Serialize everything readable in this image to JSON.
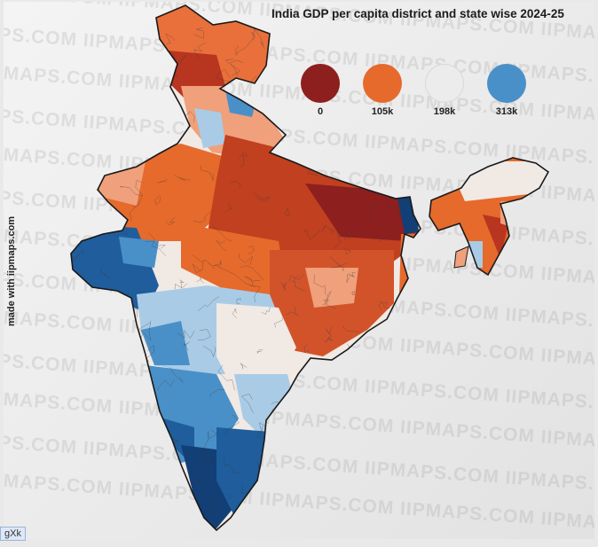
{
  "title": "India GDP per capita district and state wise 2024-25",
  "legend": [
    {
      "label": "0",
      "color": "#8e1f1f"
    },
    {
      "label": "105k",
      "color": "#e66a2c"
    },
    {
      "label": "198k",
      "color": "#ececec"
    },
    {
      "label": "313k",
      "color": "#4a90c8"
    }
  ],
  "credit": "made with iipmaps.com",
  "watermark": "IIPMAPS.COM",
  "corner_tag": "gXk",
  "colors": {
    "dark_red": "#8e1f1f",
    "red": "#c0401f",
    "orange": "#e66a2c",
    "light_orange": "#f0a07a",
    "pale": "#f1e9e4",
    "light_blue": "#a9cbe6",
    "blue": "#4a90c8",
    "dark_blue": "#1f5d9c",
    "navy": "#123f75",
    "border": "#1a1a1a"
  }
}
